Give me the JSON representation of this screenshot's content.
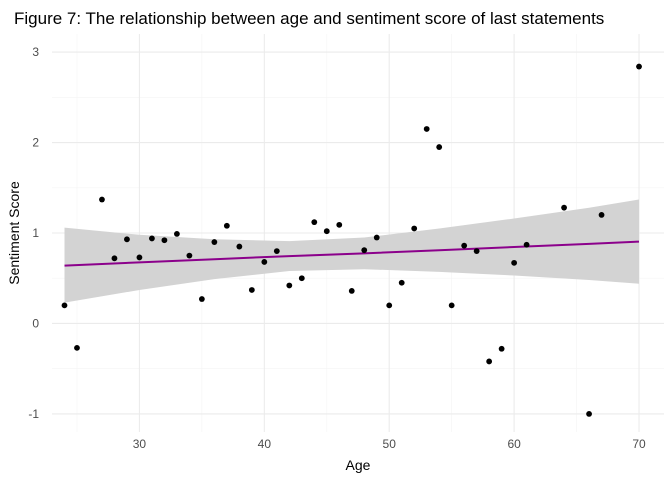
{
  "chart_data": {
    "type": "scatter",
    "title": "Figure 7: The relationship between age and sentiment score of last statements",
    "xlabel": "Age",
    "ylabel": "Sentiment Score",
    "xlim": [
      23.0,
      72.0
    ],
    "ylim": [
      -1.2,
      3.2
    ],
    "x_ticks": [
      30,
      40,
      50,
      60,
      70
    ],
    "y_ticks": [
      -1,
      0,
      1,
      2,
      3
    ],
    "grid": true,
    "legend": "none",
    "colors": {
      "points": "#000000",
      "trend_line": "#8b008b",
      "confidence_band": "#d3d3d3"
    },
    "points": [
      {
        "x": 24,
        "y": 0.2
      },
      {
        "x": 25,
        "y": -0.27
      },
      {
        "x": 27,
        "y": 1.37
      },
      {
        "x": 28,
        "y": 0.72
      },
      {
        "x": 29,
        "y": 0.93
      },
      {
        "x": 30,
        "y": 0.73
      },
      {
        "x": 31,
        "y": 0.94
      },
      {
        "x": 32,
        "y": 0.92
      },
      {
        "x": 33,
        "y": 0.99
      },
      {
        "x": 34,
        "y": 0.75
      },
      {
        "x": 35,
        "y": 0.27
      },
      {
        "x": 36,
        "y": 0.9
      },
      {
        "x": 37,
        "y": 1.08
      },
      {
        "x": 38,
        "y": 0.85
      },
      {
        "x": 39,
        "y": 0.37
      },
      {
        "x": 40,
        "y": 0.68
      },
      {
        "x": 41,
        "y": 0.8
      },
      {
        "x": 42,
        "y": 0.42
      },
      {
        "x": 43,
        "y": 0.5
      },
      {
        "x": 44,
        "y": 1.12
      },
      {
        "x": 45,
        "y": 1.02
      },
      {
        "x": 46,
        "y": 1.09
      },
      {
        "x": 47,
        "y": 0.36
      },
      {
        "x": 48,
        "y": 0.81
      },
      {
        "x": 49,
        "y": 0.95
      },
      {
        "x": 50,
        "y": 0.2
      },
      {
        "x": 51,
        "y": 0.45
      },
      {
        "x": 52,
        "y": 1.05
      },
      {
        "x": 53,
        "y": 2.15
      },
      {
        "x": 54,
        "y": 1.95
      },
      {
        "x": 55,
        "y": 0.2
      },
      {
        "x": 56,
        "y": 0.86
      },
      {
        "x": 57,
        "y": 0.8
      },
      {
        "x": 58,
        "y": -0.42
      },
      {
        "x": 59,
        "y": -0.28
      },
      {
        "x": 60,
        "y": 0.67
      },
      {
        "x": 61,
        "y": 0.87
      },
      {
        "x": 64,
        "y": 1.28
      },
      {
        "x": 66,
        "y": -1.0
      },
      {
        "x": 67,
        "y": 1.2
      },
      {
        "x": 70,
        "y": 2.84
      }
    ],
    "trend": {
      "x": [
        24,
        30,
        36,
        42,
        48,
        54,
        60,
        66,
        70
      ],
      "y": [
        0.64,
        0.675,
        0.71,
        0.745,
        0.775,
        0.81,
        0.845,
        0.88,
        0.905
      ],
      "lower": [
        0.23,
        0.37,
        0.49,
        0.58,
        0.6,
        0.57,
        0.53,
        0.48,
        0.44
      ],
      "upper": [
        1.06,
        0.98,
        0.93,
        0.91,
        0.95,
        1.05,
        1.16,
        1.28,
        1.37
      ]
    }
  }
}
